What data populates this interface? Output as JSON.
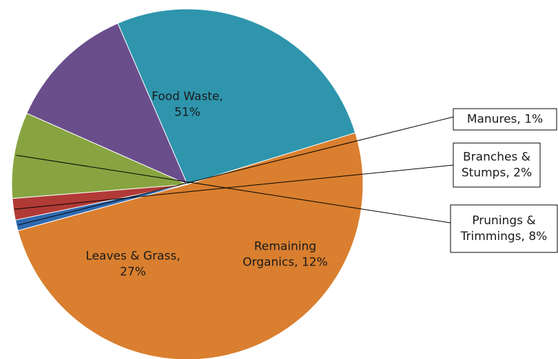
{
  "chart_data": {
    "type": "pie",
    "slices": [
      {
        "name": "Food Waste",
        "value": 51,
        "label_lines": [
          "Food Waste,",
          "51%"
        ],
        "color": "#D97F2F"
      },
      {
        "name": "Manures",
        "value": 1,
        "label_lines": [
          "Manures, 1%"
        ],
        "color": "#2E6AAF"
      },
      {
        "name": "Branches & Stumps",
        "value": 2,
        "label_lines": [
          "Branches &",
          "Stumps, 2%"
        ],
        "color": "#B13A36"
      },
      {
        "name": "Prunings & Trimmings",
        "value": 8,
        "label_lines": [
          "Prunings &",
          "Trimmings, 8%"
        ],
        "color": "#88A441"
      },
      {
        "name": "Remaining Organics",
        "value": 12,
        "label_lines": [
          "Remaining",
          "Organics, 12%"
        ],
        "color": "#6A4E8C"
      },
      {
        "name": "Leaves & Grass",
        "value": 27,
        "label_lines": [
          "Leaves & Grass,",
          "27%"
        ],
        "color": "#2E95AD"
      }
    ],
    "title": "",
    "legend": "none"
  }
}
